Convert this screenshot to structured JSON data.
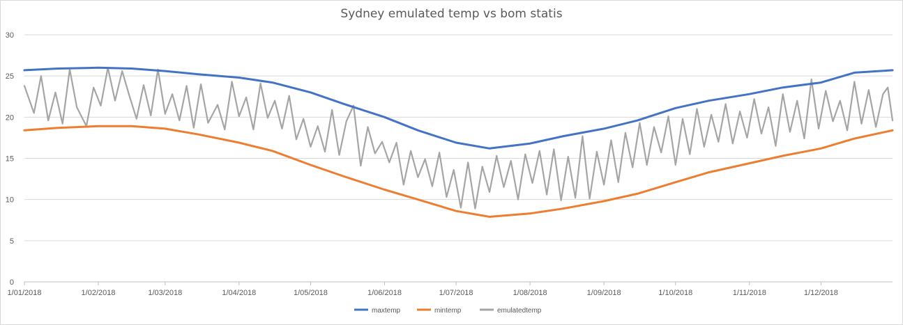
{
  "chart_data": {
    "type": "line",
    "title": "Sydney emulated temp vs bom statis",
    "xlabel": "",
    "ylabel": "",
    "ylim": [
      0,
      30
    ],
    "y_ticks": [
      0,
      5,
      10,
      15,
      20,
      25,
      30
    ],
    "x_range": [
      "2018-01-01",
      "2018-12-31"
    ],
    "x_tick_labels": [
      "1/01/2018",
      "1/02/2018",
      "1/03/2018",
      "1/04/2018",
      "1/05/2018",
      "1/06/2018",
      "1/07/2018",
      "1/08/2018",
      "1/09/2018",
      "1/10/2018",
      "1/11/2018",
      "1/12/2018"
    ],
    "x_tick_dates": [
      "2018-01-01",
      "2018-02-01",
      "2018-03-01",
      "2018-04-01",
      "2018-05-01",
      "2018-06-01",
      "2018-07-01",
      "2018-08-01",
      "2018-09-01",
      "2018-10-01",
      "2018-11-01",
      "2018-12-01"
    ],
    "grid": "horizontal",
    "legend_position": "bottom",
    "series": [
      {
        "name": "maxtemp",
        "color": "#4472c4",
        "points": [
          [
            "2018-01-01",
            25.7
          ],
          [
            "2018-01-15",
            25.9
          ],
          [
            "2018-02-01",
            26.0
          ],
          [
            "2018-02-15",
            25.9
          ],
          [
            "2018-03-01",
            25.6
          ],
          [
            "2018-03-15",
            25.2
          ],
          [
            "2018-04-01",
            24.8
          ],
          [
            "2018-04-15",
            24.2
          ],
          [
            "2018-05-01",
            23.0
          ],
          [
            "2018-05-15",
            21.6
          ],
          [
            "2018-06-01",
            20.0
          ],
          [
            "2018-06-15",
            18.4
          ],
          [
            "2018-07-01",
            16.9
          ],
          [
            "2018-07-15",
            16.2
          ],
          [
            "2018-08-01",
            16.8
          ],
          [
            "2018-08-15",
            17.7
          ],
          [
            "2018-09-01",
            18.6
          ],
          [
            "2018-09-15",
            19.6
          ],
          [
            "2018-10-01",
            21.1
          ],
          [
            "2018-10-15",
            22.0
          ],
          [
            "2018-11-01",
            22.8
          ],
          [
            "2018-11-15",
            23.6
          ],
          [
            "2018-12-01",
            24.2
          ],
          [
            "2018-12-15",
            25.4
          ],
          [
            "2018-12-31",
            25.7
          ]
        ]
      },
      {
        "name": "mintemp",
        "color": "#ed7d31",
        "points": [
          [
            "2018-01-01",
            18.4
          ],
          [
            "2018-01-15",
            18.7
          ],
          [
            "2018-02-01",
            18.9
          ],
          [
            "2018-02-15",
            18.9
          ],
          [
            "2018-03-01",
            18.6
          ],
          [
            "2018-03-15",
            17.9
          ],
          [
            "2018-04-01",
            16.9
          ],
          [
            "2018-04-15",
            15.9
          ],
          [
            "2018-05-01",
            14.2
          ],
          [
            "2018-05-15",
            12.8
          ],
          [
            "2018-06-01",
            11.2
          ],
          [
            "2018-06-15",
            10.0
          ],
          [
            "2018-07-01",
            8.6
          ],
          [
            "2018-07-15",
            7.9
          ],
          [
            "2018-08-01",
            8.3
          ],
          [
            "2018-08-15",
            8.9
          ],
          [
            "2018-09-01",
            9.8
          ],
          [
            "2018-09-15",
            10.7
          ],
          [
            "2018-10-01",
            12.1
          ],
          [
            "2018-10-15",
            13.3
          ],
          [
            "2018-11-01",
            14.4
          ],
          [
            "2018-11-15",
            15.3
          ],
          [
            "2018-12-01",
            16.2
          ],
          [
            "2018-12-15",
            17.4
          ],
          [
            "2018-12-31",
            18.4
          ]
        ]
      },
      {
        "name": "emulatedtemp",
        "color": "#a5a5a5",
        "points": [
          [
            "2018-01-01",
            23.8
          ],
          [
            "2018-01-05",
            20.5
          ],
          [
            "2018-01-08",
            25.0
          ],
          [
            "2018-01-11",
            19.6
          ],
          [
            "2018-01-14",
            23.0
          ],
          [
            "2018-01-17",
            19.2
          ],
          [
            "2018-01-20",
            25.8
          ],
          [
            "2018-01-23",
            21.2
          ],
          [
            "2018-01-27",
            18.9
          ],
          [
            "2018-01-30",
            23.6
          ],
          [
            "2018-02-02",
            21.4
          ],
          [
            "2018-02-05",
            26.0
          ],
          [
            "2018-02-08",
            22.0
          ],
          [
            "2018-02-11",
            25.6
          ],
          [
            "2018-02-14",
            22.6
          ],
          [
            "2018-02-17",
            19.8
          ],
          [
            "2018-02-20",
            23.9
          ],
          [
            "2018-02-23",
            20.2
          ],
          [
            "2018-02-26",
            25.8
          ],
          [
            "2018-03-01",
            20.4
          ],
          [
            "2018-03-04",
            22.8
          ],
          [
            "2018-03-07",
            19.6
          ],
          [
            "2018-03-10",
            23.8
          ],
          [
            "2018-03-13",
            18.7
          ],
          [
            "2018-03-16",
            24.0
          ],
          [
            "2018-03-19",
            19.3
          ],
          [
            "2018-03-23",
            21.5
          ],
          [
            "2018-03-26",
            18.5
          ],
          [
            "2018-03-29",
            24.3
          ],
          [
            "2018-04-01",
            20.1
          ],
          [
            "2018-04-04",
            22.4
          ],
          [
            "2018-04-07",
            18.5
          ],
          [
            "2018-04-10",
            24.1
          ],
          [
            "2018-04-13",
            19.9
          ],
          [
            "2018-04-16",
            22.0
          ],
          [
            "2018-04-19",
            18.6
          ],
          [
            "2018-04-22",
            22.6
          ],
          [
            "2018-04-25",
            17.3
          ],
          [
            "2018-04-28",
            19.8
          ],
          [
            "2018-05-01",
            16.4
          ],
          [
            "2018-05-04",
            18.9
          ],
          [
            "2018-05-07",
            15.8
          ],
          [
            "2018-05-10",
            20.9
          ],
          [
            "2018-05-13",
            15.4
          ],
          [
            "2018-05-16",
            19.5
          ],
          [
            "2018-05-19",
            21.4
          ],
          [
            "2018-05-22",
            14.1
          ],
          [
            "2018-05-25",
            18.8
          ],
          [
            "2018-05-28",
            15.6
          ],
          [
            "2018-05-31",
            17.0
          ],
          [
            "2018-06-03",
            14.5
          ],
          [
            "2018-06-06",
            16.9
          ],
          [
            "2018-06-09",
            11.8
          ],
          [
            "2018-06-12",
            15.9
          ],
          [
            "2018-06-15",
            12.7
          ],
          [
            "2018-06-18",
            14.9
          ],
          [
            "2018-06-21",
            11.6
          ],
          [
            "2018-06-24",
            15.7
          ],
          [
            "2018-06-27",
            10.3
          ],
          [
            "2018-06-30",
            13.6
          ],
          [
            "2018-07-03",
            9.0
          ],
          [
            "2018-07-06",
            14.5
          ],
          [
            "2018-07-09",
            8.9
          ],
          [
            "2018-07-12",
            14.0
          ],
          [
            "2018-07-15",
            10.9
          ],
          [
            "2018-07-18",
            15.3
          ],
          [
            "2018-07-21",
            11.5
          ],
          [
            "2018-07-24",
            14.7
          ],
          [
            "2018-07-27",
            10.0
          ],
          [
            "2018-07-30",
            15.5
          ],
          [
            "2018-08-02",
            12.0
          ],
          [
            "2018-08-05",
            15.9
          ],
          [
            "2018-08-08",
            10.6
          ],
          [
            "2018-08-11",
            16.1
          ],
          [
            "2018-08-14",
            9.9
          ],
          [
            "2018-08-17",
            15.2
          ],
          [
            "2018-08-20",
            10.2
          ],
          [
            "2018-08-23",
            17.7
          ],
          [
            "2018-08-26",
            10.1
          ],
          [
            "2018-08-29",
            15.8
          ],
          [
            "2018-09-01",
            11.8
          ],
          [
            "2018-09-04",
            17.2
          ],
          [
            "2018-09-07",
            12.1
          ],
          [
            "2018-09-10",
            18.1
          ],
          [
            "2018-09-13",
            13.9
          ],
          [
            "2018-09-16",
            19.3
          ],
          [
            "2018-09-19",
            14.2
          ],
          [
            "2018-09-22",
            18.8
          ],
          [
            "2018-09-25",
            15.7
          ],
          [
            "2018-09-28",
            20.1
          ],
          [
            "2018-10-01",
            14.2
          ],
          [
            "2018-10-04",
            19.8
          ],
          [
            "2018-10-07",
            15.5
          ],
          [
            "2018-10-10",
            21.0
          ],
          [
            "2018-10-13",
            16.4
          ],
          [
            "2018-10-16",
            20.3
          ],
          [
            "2018-10-19",
            17.0
          ],
          [
            "2018-10-22",
            21.6
          ],
          [
            "2018-10-25",
            16.8
          ],
          [
            "2018-10-28",
            20.7
          ],
          [
            "2018-10-31",
            17.5
          ],
          [
            "2018-11-03",
            22.2
          ],
          [
            "2018-11-06",
            18.0
          ],
          [
            "2018-11-09",
            21.2
          ],
          [
            "2018-11-12",
            16.5
          ],
          [
            "2018-11-15",
            22.8
          ],
          [
            "2018-11-18",
            18.2
          ],
          [
            "2018-11-21",
            22.0
          ],
          [
            "2018-11-24",
            17.4
          ],
          [
            "2018-11-27",
            24.6
          ],
          [
            "2018-11-30",
            18.6
          ],
          [
            "2018-12-03",
            23.2
          ],
          [
            "2018-12-06",
            19.5
          ],
          [
            "2018-12-09",
            22.0
          ],
          [
            "2018-12-12",
            18.4
          ],
          [
            "2018-12-15",
            24.3
          ],
          [
            "2018-12-18",
            19.2
          ],
          [
            "2018-12-21",
            23.3
          ],
          [
            "2018-12-24",
            18.8
          ],
          [
            "2018-12-27",
            22.8
          ],
          [
            "2018-12-29",
            23.6
          ],
          [
            "2018-12-31",
            19.6
          ]
        ]
      }
    ]
  }
}
